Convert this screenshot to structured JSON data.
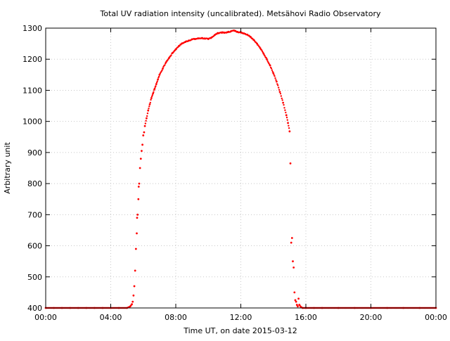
{
  "chart_data": {
    "type": "scatter",
    "title": "Total UV radiation intensity (uncalibrated). Metsähovi Radio Observatory",
    "xlabel": "Time UT, on date 2015-03-12",
    "ylabel": "Arbitrary unit",
    "xlim": [
      0,
      24
    ],
    "ylim": [
      400,
      1300
    ],
    "x_ticks": [
      0,
      4,
      8,
      12,
      16,
      20,
      24
    ],
    "x_tick_labels": [
      "00:00",
      "04:00",
      "08:00",
      "12:00",
      "16:00",
      "20:00",
      "00:00"
    ],
    "y_ticks": [
      400,
      500,
      600,
      700,
      800,
      900,
      1000,
      1100,
      1200,
      1300
    ],
    "y_tick_labels": [
      "400",
      "500",
      "600",
      "700",
      "800",
      "900",
      "1000",
      "1100",
      "1200",
      "1300"
    ],
    "grid": true,
    "point_color": "#ff0000",
    "series": [
      {
        "x": [
          0.0,
          0.5,
          1.0,
          1.5,
          2.0,
          2.5,
          3.0,
          3.5,
          4.0,
          4.5,
          5.0,
          5.2,
          5.3,
          5.35,
          5.4,
          5.45,
          5.5,
          5.55,
          5.6,
          5.62,
          5.65,
          5.7,
          5.72,
          5.75,
          5.8,
          5.85,
          5.9,
          5.95,
          6.0,
          6.05,
          6.1,
          6.2,
          6.3,
          6.4,
          6.5,
          6.6,
          6.7,
          6.8,
          6.9,
          7.0,
          7.2,
          7.4,
          7.6,
          7.8,
          8.0,
          8.2,
          8.4,
          8.6,
          8.8,
          9.0,
          9.2,
          9.4,
          9.6,
          9.8,
          10.0,
          10.2,
          10.4,
          10.6,
          10.8,
          11.0,
          11.2,
          11.4,
          11.6,
          11.8,
          12.0,
          12.2,
          12.4,
          12.6,
          12.8,
          13.0,
          13.2,
          13.4,
          13.6,
          13.8,
          14.0,
          14.2,
          14.4,
          14.6,
          14.8,
          14.9,
          15.0,
          15.05,
          15.1,
          15.15,
          15.2,
          15.25,
          15.3,
          15.35,
          15.4,
          15.45,
          15.5,
          15.55,
          15.6,
          15.7,
          15.8,
          16.0,
          16.5,
          17.0,
          18.0,
          19.0,
          20.0,
          21.0,
          22.0,
          23.0,
          24.0
        ],
        "y": [
          400,
          400,
          400,
          400,
          400,
          400,
          400,
          400,
          400,
          400,
          400,
          405,
          412,
          420,
          440,
          470,
          520,
          590,
          640,
          690,
          700,
          750,
          790,
          800,
          850,
          880,
          905,
          925,
          955,
          965,
          985,
          1010,
          1035,
          1055,
          1075,
          1090,
          1105,
          1120,
          1135,
          1150,
          1170,
          1190,
          1205,
          1220,
          1232,
          1243,
          1251,
          1256,
          1260,
          1264,
          1265,
          1267,
          1268,
          1266,
          1265,
          1270,
          1278,
          1284,
          1286,
          1285,
          1287,
          1290,
          1292,
          1288,
          1286,
          1283,
          1279,
          1272,
          1262,
          1250,
          1235,
          1218,
          1200,
          1180,
          1155,
          1128,
          1095,
          1060,
          1020,
          995,
          968,
          865,
          610,
          625,
          550,
          530,
          450,
          425,
          420,
          410,
          405,
          430,
          410,
          403,
          400,
          400,
          400,
          400,
          400,
          400,
          400,
          400,
          400,
          400,
          400
        ]
      }
    ]
  }
}
